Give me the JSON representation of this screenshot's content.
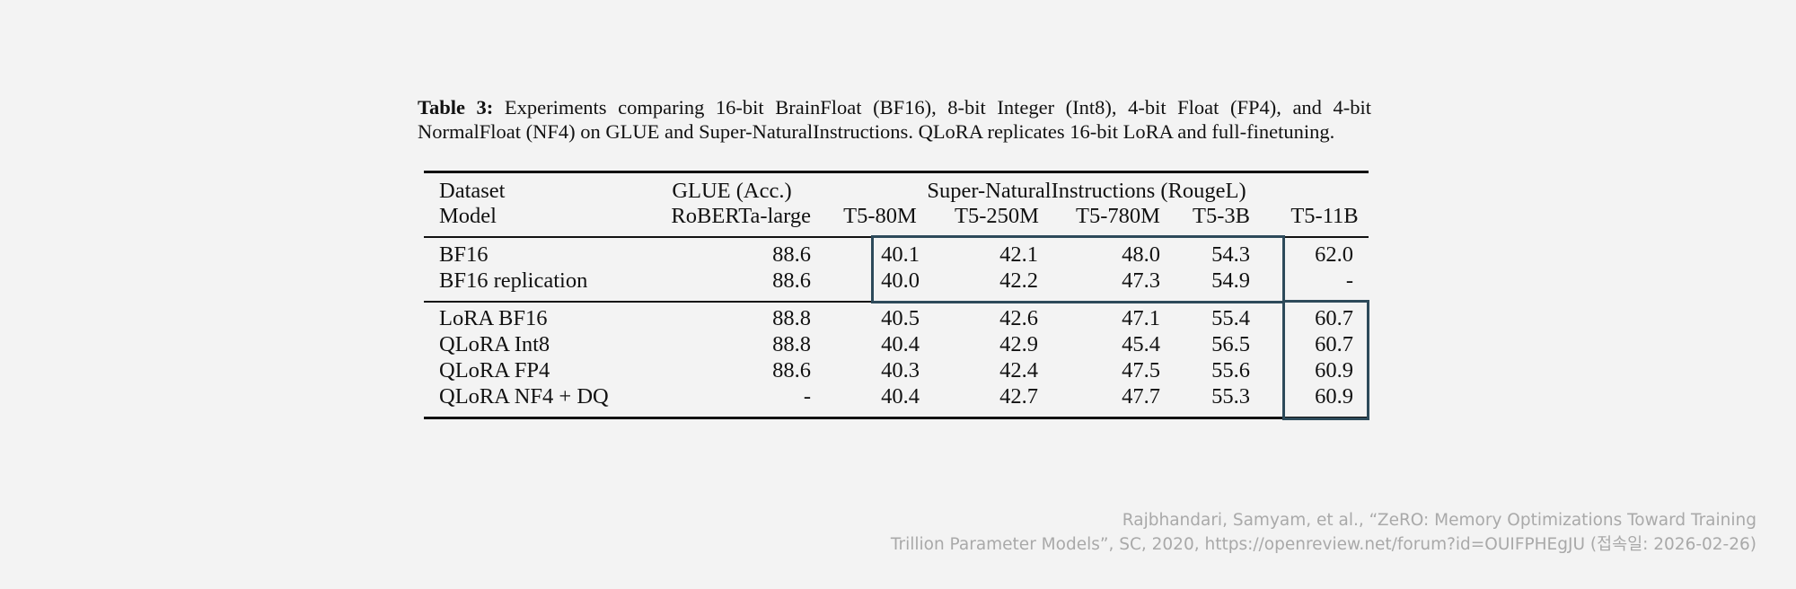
{
  "caption": {
    "label": "Table 3:",
    "text": "Experiments comparing 16-bit BrainFloat (BF16), 8-bit Integer (Int8), 4-bit Float (FP4), and 4-bit NormalFloat (NF4) on GLUE and Super-NaturalInstructions. QLoRA replicates 16-bit LoRA and full-finetuning."
  },
  "header": {
    "dataset_label": "Dataset",
    "model_label": "Model",
    "glue_group": "GLUE (Acc.)",
    "sni_group": "Super-NaturalInstructions (RougeL)",
    "columns": [
      "RoBERTa-large",
      "T5-80M",
      "T5-250M",
      "T5-780M",
      "T5-3B",
      "T5-11B"
    ]
  },
  "rows": [
    {
      "model": "BF16",
      "values": [
        "88.6",
        "40.1",
        "42.1",
        "48.0",
        "54.3",
        "62.0"
      ]
    },
    {
      "model": "BF16 replication",
      "values": [
        "88.6",
        "40.0",
        "42.2",
        "47.3",
        "54.9",
        "-"
      ]
    },
    {
      "model": "LoRA BF16",
      "values": [
        "88.8",
        "40.5",
        "42.6",
        "47.1",
        "55.4",
        "60.7"
      ]
    },
    {
      "model": "QLoRA Int8",
      "values": [
        "88.8",
        "40.4",
        "42.9",
        "45.4",
        "56.5",
        "60.7"
      ]
    },
    {
      "model": "QLoRA FP4",
      "values": [
        "88.6",
        "40.3",
        "42.4",
        "47.5",
        "55.6",
        "60.9"
      ]
    },
    {
      "model": "QLoRA NF4 + DQ",
      "values": [
        "-",
        "40.4",
        "42.7",
        "47.7",
        "55.3",
        "60.9"
      ]
    }
  ],
  "reference": {
    "line1": "Rajbhandari, Samyam, et al., “ZeRO: Memory Optimizations Toward Training",
    "line2": "Trillion Parameter Models”, SC, 2020, https://openreview.net/forum?id=OUIFPHEgJU (접속일: 2026-02-26)"
  },
  "colors": {
    "highlight_box": "#2d4a5a",
    "reference_text": "#a9a9a9",
    "background": "#f3f3f3"
  }
}
